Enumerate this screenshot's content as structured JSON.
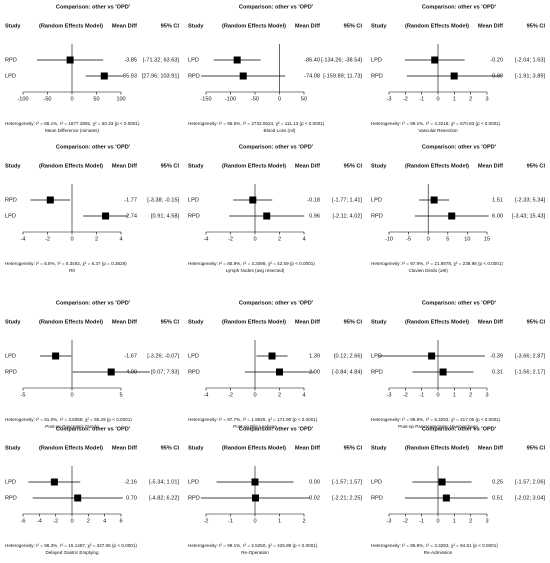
{
  "chart_data": [
    {
      "type": "forest",
      "title": "Comparison: other vs 'OPD'",
      "columns": [
        "Study",
        "(Random Effects Model)",
        "Mean Diff",
        "95% CI"
      ],
      "studies": [
        "RPD",
        "LPD"
      ],
      "values": [
        -3.85,
        65.93
      ],
      "value_labels": [
        "-3.85",
        "65.93"
      ],
      "lower": [
        -71.32,
        27.96
      ],
      "upper": [
        63.63,
        103.91
      ],
      "ci_labels": [
        "[-71.32; 63.63]",
        "[27.96; 103.91]"
      ],
      "xlim": [
        -100,
        100
      ],
      "xticks": [
        -100,
        -50,
        0,
        50,
        100
      ],
      "heterogeneity": "Heterogeneity: I² = 88.1%, τ² = 1877.2892, χ² = 50.33 (p < 0.0001)",
      "xlabel": "Mean Difference (minutes)",
      "color": "#000000"
    },
    {
      "type": "forest",
      "title": "Comparison: other vs 'OPD'",
      "columns": [
        "Study",
        "(Random Effects Model)",
        "Mean Diff",
        "95% CI"
      ],
      "studies": [
        "LPD",
        "RPD"
      ],
      "values": [
        -86.4,
        -74.08
      ],
      "value_labels": [
        "-86.40",
        "-74.08"
      ],
      "lower": [
        -134.26,
        -159.89
      ],
      "upper": [
        -38.54,
        11.73
      ],
      "ci_labels": [
        "[-134.26; -38.54]",
        "[-159.89; 11.73]"
      ],
      "xlim": [
        -150,
        50
      ],
      "xticks": [
        -150,
        -100,
        -50,
        0,
        50
      ],
      "heterogeneity": "Heterogeneity: I² = 95.5%, τ² = 2733.0624, χ² = 111.13 (p < 0.0001)",
      "xlabel": "Blood Loss (ml)",
      "color": "#000000"
    },
    {
      "type": "forest",
      "title": "Comparison: other vs 'OPD'",
      "columns": [
        "Study",
        "(Random Effects Model)",
        "Mean Diff",
        "95% CI"
      ],
      "studies": [
        "LPD",
        "RPD"
      ],
      "values": [
        -0.2,
        0.99
      ],
      "value_labels": [
        "-0.20",
        "0.99"
      ],
      "lower": [
        -2.04,
        -1.91
      ],
      "upper": [
        1.63,
        3.89
      ],
      "ci_labels": [
        "[-2.04; 1.63]",
        "[-1.91; 3.89]"
      ],
      "xlim": [
        -3,
        3
      ],
      "xticks": [
        -3,
        -2,
        -1,
        0,
        1,
        2,
        3
      ],
      "heterogeneity": "Heterogeneity: I² = 99.1%, τ² = 4.3218, χ² = 570.83 (p < 0.0001)",
      "xlabel": "Vascular Resection",
      "color": "#000000"
    },
    {
      "type": "forest",
      "title": "Comparison: other vs 'OPD'",
      "columns": [
        "Study",
        "(Random Effects Model)",
        "Mean Diff",
        "95% CI"
      ],
      "studies": [
        "RPD",
        "LPD"
      ],
      "values": [
        -1.77,
        2.74
      ],
      "value_labels": [
        "-1.77",
        "2.74"
      ],
      "lower": [
        -3.38,
        0.91
      ],
      "upper": [
        -0.15,
        4.58
      ],
      "ci_labels": [
        "[-3.38; -0.15]",
        "[0.91; 4.58]"
      ],
      "xlim": [
        -4,
        4
      ],
      "xticks": [
        -4,
        -2,
        0,
        2,
        4
      ],
      "heterogeneity": "Heterogeneity: I² = 5.8%, τ² = 0.3492, χ² = 6.37 (p = 0.3828)",
      "xlabel": "R0",
      "color": "#000000"
    },
    {
      "type": "forest",
      "title": "Comparison: other vs 'OPD'",
      "columns": [
        "Study",
        "(Random Effects Model)",
        "Mean Diff",
        "95% CI"
      ],
      "studies": [
        "LPD",
        "RPD"
      ],
      "values": [
        -0.18,
        0.96
      ],
      "value_labels": [
        "-0.18",
        "0.96"
      ],
      "lower": [
        -1.77,
        -2.11
      ],
      "upper": [
        1.41,
        4.02
      ],
      "ci_labels": [
        "[-1.77; 1.41]",
        "[-2.11; 4.02]"
      ],
      "xlim": [
        -4,
        4
      ],
      "xticks": [
        -4,
        -2,
        0,
        2,
        4
      ],
      "heterogeneity": "Heterogeneity: I² = 85.9%, τ² = 3.2098, χ² = 42.59 (p < 0.0001)",
      "xlabel": "Lymph Nodes (avg resected)",
      "color": "#000000"
    },
    {
      "type": "forest",
      "title": "Comparison: other vs 'OPD'",
      "columns": [
        "Study",
        "(Random Effects Model)",
        "Mean Diff",
        "95% CI"
      ],
      "studies": [
        "LPD",
        "RPD"
      ],
      "values": [
        1.51,
        6.0
      ],
      "value_labels": [
        "1.51",
        "6.00"
      ],
      "lower": [
        -2.33,
        -3.43
      ],
      "upper": [
        5.34,
        15.43
      ],
      "ci_labels": [
        "[-2.33; 5.34]",
        "[-3.43; 15.43]"
      ],
      "xlim": [
        -10,
        15
      ],
      "xticks": [
        -10,
        -5,
        0,
        5,
        10,
        15
      ],
      "heterogeneity": "Heterogeneity: I² = 97.9%, τ² = 21.8978, χ² = 238.98 (p < 0.0001)",
      "xlabel": "Clavien Dindo (≥III)",
      "color": "#000000"
    },
    {
      "type": "forest",
      "title": "Comparison: other vs 'OPD'",
      "columns": [
        "Study",
        "(Random Effects Model)",
        "Mean Diff",
        "95% CI"
      ],
      "studies": [
        "LPD",
        "RPD"
      ],
      "values": [
        -1.67,
        4.0
      ],
      "value_labels": [
        "-1.67",
        "4.00"
      ],
      "lower": [
        -3.26,
        0.07
      ],
      "upper": [
        -0.07,
        7.93
      ],
      "ci_labels": [
        "[-3.26; -0.07]",
        "[0.07; 7.93]"
      ],
      "xlim": [
        -5,
        5
      ],
      "xticks": [
        -5,
        0,
        5
      ],
      "heterogeneity": "Heterogeneity: I² = 91.0%, τ² = 3.5058, χ² = 55.29 (p < 0.0001)",
      "xlabel": "Post-op Pancreatic Fistula",
      "color": "#000000"
    },
    {
      "type": "forest",
      "title": "Comparison: other vs 'OPD'",
      "columns": [
        "Study",
        "(Random Effects Model)",
        "Mean Diff",
        "95% CI"
      ],
      "studies": [
        "LPD",
        "RPD"
      ],
      "values": [
        1.39,
        2.0
      ],
      "value_labels": [
        "1.39",
        "2.00"
      ],
      "lower": [
        0.12,
        -0.84
      ],
      "upper": [
        2.66,
        4.84
      ],
      "ci_labels": [
        "[0.12; 2.66]",
        "[-0.84; 4.84]"
      ],
      "xlim": [
        -4,
        4
      ],
      "xticks": [
        -4,
        -2,
        0,
        2,
        4
      ],
      "heterogeneity": "Heterogeneity: I² = 97.7%, τ² = 1.9925, χ² = 171.90 (p < 0.0001)",
      "xlabel": "Post-op Bile Leakage",
      "color": "#000000"
    },
    {
      "type": "forest",
      "title": "Comparison: other vs 'OPD'",
      "columns": [
        "Study",
        "(Random Effects Model)",
        "Mean Diff",
        "95% CI"
      ],
      "studies": [
        "LPD",
        "RPD"
      ],
      "values": [
        -0.39,
        0.31
      ],
      "value_labels": [
        "-0.39",
        "0.31"
      ],
      "lower": [
        -3.66,
        -1.56
      ],
      "upper": [
        2.87,
        2.17
      ],
      "ci_labels": [
        "[-3.66; 2.87]",
        "[-1.56; 2.17]"
      ],
      "xlim": [
        -3,
        3
      ],
      "xticks": [
        -3,
        -2,
        -1,
        0,
        1,
        2,
        3
      ],
      "heterogeneity": "Heterogeneity: I² = 98.6%, τ² = 5.3293, χ² = 417.05 (p < 0.0001)",
      "xlabel": "Post-op Pancreatectomy Haemorrhage",
      "color": "#000000"
    },
    {
      "type": "forest",
      "title": "Comparison: other vs 'OPD'",
      "columns": [
        "Study",
        "(Random Effects Model)",
        "Mean Diff",
        "95% CI"
      ],
      "studies": [
        "LPD",
        "RPD"
      ],
      "values": [
        -2.16,
        0.7
      ],
      "value_labels": [
        "-2.16",
        "0.70"
      ],
      "lower": [
        -5.34,
        -4.82
      ],
      "upper": [
        1.01,
        6.22
      ],
      "ci_labels": [
        "[-5.34; 1.01]",
        "[-4.82; 6.22]"
      ],
      "xlim": [
        -6,
        6
      ],
      "xticks": [
        -6,
        -4,
        -2,
        0,
        2,
        4,
        6
      ],
      "heterogeneity": "Heterogeneity: I² = 98.3%, τ² = 15.1487, χ² = 327.06 (p < 0.0001)",
      "xlabel": "Delayed Gastric Emptying",
      "color": "#000000"
    },
    {
      "type": "forest",
      "title": "Comparison: other vs 'OPD'",
      "columns": [
        "Study",
        "(Random Effects Model)",
        "Mean Diff",
        "95% CI"
      ],
      "studies": [
        "LPD",
        "RPD"
      ],
      "values": [
        0,
        0.02
      ],
      "value_labels": [
        "0.00",
        "0.02"
      ],
      "lower": [
        -1.57,
        -2.21
      ],
      "upper": [
        1.57,
        2.25
      ],
      "ci_labels": [
        "[-1.57; 1.57]",
        "[-2.21; 2.25]"
      ],
      "xlim": [
        -2,
        2
      ],
      "xticks": [
        -2,
        -1,
        0,
        1,
        2
      ],
      "heterogeneity": "Heterogeneity: I² = 99.1%, τ² = 2.5250, χ² = 425.89 (p < 0.0001)",
      "xlabel": "Re-Operation",
      "color": "#000000"
    },
    {
      "type": "forest",
      "title": "Comparison: other vs 'OPD'",
      "columns": [
        "Study",
        "(Random Effects Model)",
        "Mean Diff",
        "95% CI"
      ],
      "studies": [
        "LPD",
        "RPD"
      ],
      "values": [
        0.25,
        0.51
      ],
      "value_labels": [
        "0.25",
        "0.51"
      ],
      "lower": [
        -1.57,
        -2.02
      ],
      "upper": [
        2.06,
        3.04
      ],
      "ci_labels": [
        "[-1.57; 2.06]",
        "[-2.02; 3.04]"
      ],
      "xlim": [
        -3,
        3
      ],
      "xticks": [
        -3,
        -2,
        -1,
        0,
        1,
        2,
        3
      ],
      "heterogeneity": "Heterogeneity: I² = 95.8%, τ² = 3.3293, χ² = 94.51 (p < 0.0001)",
      "xlabel": "Re-Admission",
      "color": "#000000"
    }
  ]
}
